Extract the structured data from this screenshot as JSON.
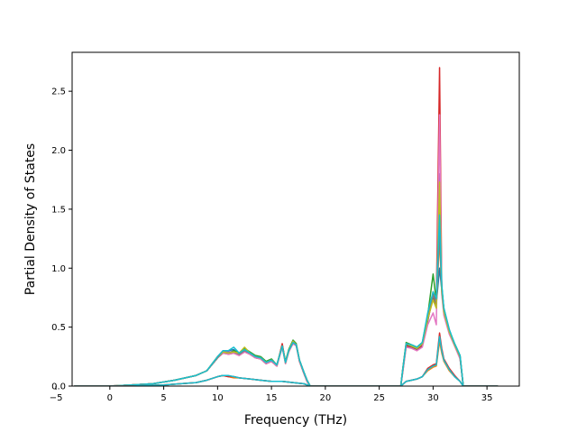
{
  "chart_data": {
    "type": "line",
    "title": "",
    "xlabel": "Frequency (THz)",
    "ylabel": "Partial Density of States",
    "xlim": [
      -3.5,
      38.0
    ],
    "ylim": [
      0.0,
      2.83
    ],
    "xticks": [
      -5,
      0,
      5,
      10,
      15,
      20,
      25,
      30,
      35
    ],
    "xtick_labels": [
      "−5",
      "0",
      "5",
      "10",
      "15",
      "20",
      "25",
      "30",
      "35"
    ],
    "yticks": [
      0.0,
      0.5,
      1.0,
      1.5,
      2.0,
      2.5
    ],
    "ytick_labels": [
      "0.0",
      "0.5",
      "1.0",
      "1.5",
      "2.0",
      "2.5"
    ],
    "grid": false,
    "legend": "none",
    "series": [
      {
        "color": "#1f77b4",
        "x": [
          -3.3,
          0,
          2,
          4,
          6,
          8,
          9,
          10,
          10.5,
          11,
          11.5,
          12,
          12.5,
          13,
          13.5,
          14,
          14.5,
          15,
          15.5,
          16,
          16.3,
          16.6,
          17,
          17.3,
          17.6,
          18,
          18.3,
          18.6,
          27.0,
          27.2,
          27.5,
          28,
          28.5,
          29,
          29.5,
          30,
          30.3,
          30.6,
          30.8,
          31,
          31.5,
          32,
          32.5,
          32.8,
          36
        ],
        "y": [
          0,
          0,
          0.01,
          0.02,
          0.05,
          0.09,
          0.13,
          0.24,
          0.29,
          0.3,
          0.31,
          0.27,
          0.3,
          0.28,
          0.25,
          0.24,
          0.2,
          0.22,
          0.18,
          0.33,
          0.2,
          0.3,
          0.37,
          0.34,
          0.22,
          0.12,
          0.05,
          0,
          0,
          0.15,
          0.36,
          0.33,
          0.32,
          0.36,
          0.55,
          0.78,
          0.7,
          1.0,
          0.82,
          0.66,
          0.48,
          0.35,
          0.25,
          0,
          0
        ]
      },
      {
        "color": "#ff7f0e",
        "x": [
          -3.3,
          0,
          2,
          4,
          6,
          8,
          9,
          10,
          10.5,
          11,
          11.5,
          12,
          12.5,
          13,
          13.5,
          14,
          14.5,
          15,
          15.5,
          16,
          16.3,
          16.6,
          17,
          17.3,
          17.6,
          18,
          18.3,
          18.6,
          27.0,
          27.2,
          27.5,
          28,
          28.5,
          29,
          29.5,
          30,
          30.3,
          30.6,
          30.8,
          31,
          31.5,
          32,
          32.5,
          32.8,
          36
        ],
        "y": [
          0,
          0,
          0.01,
          0.02,
          0.05,
          0.09,
          0.13,
          0.25,
          0.28,
          0.29,
          0.28,
          0.27,
          0.31,
          0.27,
          0.24,
          0.23,
          0.19,
          0.21,
          0.17,
          0.34,
          0.19,
          0.29,
          0.36,
          0.35,
          0.21,
          0.11,
          0.04,
          0,
          0,
          0.14,
          0.35,
          0.34,
          0.3,
          0.35,
          0.57,
          0.74,
          0.68,
          1.25,
          0.8,
          0.62,
          0.45,
          0.34,
          0.24,
          0,
          0
        ]
      },
      {
        "color": "#2ca02c",
        "x": [
          -3.3,
          0,
          2,
          4,
          6,
          8,
          9,
          10,
          10.5,
          11,
          11.5,
          12,
          12.5,
          13,
          13.5,
          14,
          14.5,
          15,
          15.5,
          16,
          16.3,
          16.6,
          17,
          17.3,
          17.6,
          18,
          18.3,
          18.6,
          27.0,
          27.2,
          27.5,
          28,
          28.5,
          29,
          29.5,
          30,
          30.3,
          30.6,
          30.8,
          31,
          31.5,
          32,
          32.5,
          32.8,
          36
        ],
        "y": [
          0,
          0,
          0.01,
          0.02,
          0.05,
          0.09,
          0.13,
          0.24,
          0.29,
          0.28,
          0.3,
          0.28,
          0.32,
          0.29,
          0.26,
          0.25,
          0.21,
          0.23,
          0.18,
          0.35,
          0.21,
          0.31,
          0.39,
          0.36,
          0.22,
          0.12,
          0.05,
          0,
          0,
          0.16,
          0.37,
          0.35,
          0.33,
          0.37,
          0.6,
          0.95,
          0.72,
          1.5,
          0.85,
          0.64,
          0.47,
          0.36,
          0.26,
          0,
          0
        ]
      },
      {
        "color": "#d62728",
        "x": [
          -3.3,
          0,
          2,
          4,
          6,
          8,
          9,
          10,
          10.5,
          11,
          11.5,
          12,
          12.5,
          13,
          13.5,
          14,
          14.5,
          15,
          15.5,
          16,
          16.3,
          16.6,
          17,
          17.3,
          17.6,
          18,
          18.3,
          18.6,
          27.0,
          27.2,
          27.5,
          28,
          28.5,
          29,
          29.5,
          30,
          30.3,
          30.6,
          30.8,
          31,
          31.5,
          32,
          32.5,
          32.8,
          36
        ],
        "y": [
          0,
          0,
          0.01,
          0.02,
          0.05,
          0.09,
          0.13,
          0.24,
          0.28,
          0.27,
          0.28,
          0.26,
          0.29,
          0.27,
          0.25,
          0.23,
          0.19,
          0.21,
          0.17,
          0.36,
          0.2,
          0.29,
          0.38,
          0.35,
          0.21,
          0.11,
          0.04,
          0,
          0,
          0.13,
          0.34,
          0.33,
          0.31,
          0.34,
          0.56,
          0.8,
          0.7,
          2.7,
          0.84,
          0.65,
          0.46,
          0.35,
          0.24,
          0,
          0
        ]
      },
      {
        "color": "#9467bd",
        "x": [
          -3.3,
          0,
          2,
          4,
          6,
          8,
          9,
          10,
          10.5,
          11,
          11.5,
          12,
          12.5,
          13,
          13.5,
          14,
          14.5,
          15,
          15.5,
          16,
          16.3,
          16.6,
          17,
          17.3,
          17.6,
          18,
          18.3,
          18.6,
          27.0,
          27.2,
          27.5,
          28,
          28.5,
          29,
          29.5,
          30,
          30.3,
          30.6,
          30.8,
          31,
          31.5,
          32,
          32.5,
          32.8,
          36
        ],
        "y": [
          0,
          0,
          0.01,
          0.02,
          0.05,
          0.09,
          0.13,
          0.25,
          0.3,
          0.29,
          0.29,
          0.27,
          0.3,
          0.28,
          0.25,
          0.24,
          0.2,
          0.22,
          0.18,
          0.33,
          0.2,
          0.3,
          0.37,
          0.34,
          0.22,
          0.12,
          0.05,
          0,
          0,
          0.15,
          0.36,
          0.34,
          0.32,
          0.36,
          0.58,
          0.76,
          0.69,
          1.8,
          0.83,
          0.63,
          0.46,
          0.35,
          0.25,
          0,
          0
        ]
      },
      {
        "color": "#8c564b",
        "x": [
          -3.3,
          0,
          2,
          4,
          6,
          8,
          9,
          10,
          10.5,
          11,
          11.5,
          12,
          12.5,
          13,
          13.5,
          14,
          14.5,
          15,
          15.5,
          16,
          16.3,
          16.6,
          17,
          17.3,
          17.6,
          18,
          18.3,
          18.6,
          27.0,
          27.2,
          27.5,
          28,
          28.5,
          29,
          29.5,
          30,
          30.3,
          30.6,
          30.8,
          31,
          31.5,
          32,
          32.5,
          32.8,
          36
        ],
        "y": [
          0,
          0,
          0.01,
          0.02,
          0.05,
          0.09,
          0.13,
          0.24,
          0.28,
          0.28,
          0.29,
          0.27,
          0.3,
          0.27,
          0.24,
          0.23,
          0.19,
          0.21,
          0.17,
          0.34,
          0.2,
          0.3,
          0.38,
          0.35,
          0.21,
          0.11,
          0.04,
          0,
          0,
          0.14,
          0.35,
          0.33,
          0.31,
          0.35,
          0.56,
          0.75,
          0.68,
          1.6,
          0.81,
          0.63,
          0.46,
          0.35,
          0.24,
          0,
          0
        ]
      },
      {
        "color": "#e377c2",
        "x": [
          -3.3,
          0,
          2,
          4,
          6,
          8,
          9,
          10,
          10.5,
          11,
          11.5,
          12,
          12.5,
          13,
          13.5,
          14,
          14.5,
          15,
          15.5,
          16,
          16.3,
          16.6,
          17,
          17.3,
          17.6,
          18,
          18.3,
          18.6,
          27.0,
          27.2,
          27.5,
          28,
          28.5,
          29,
          29.5,
          30,
          30.3,
          30.6,
          30.8,
          31,
          31.5,
          32,
          32.5,
          32.8,
          36
        ],
        "y": [
          0,
          0,
          0.01,
          0.02,
          0.05,
          0.09,
          0.13,
          0.24,
          0.28,
          0.27,
          0.28,
          0.26,
          0.29,
          0.27,
          0.24,
          0.23,
          0.19,
          0.21,
          0.17,
          0.33,
          0.19,
          0.29,
          0.36,
          0.34,
          0.21,
          0.11,
          0.04,
          0,
          0,
          0.13,
          0.33,
          0.32,
          0.3,
          0.33,
          0.52,
          0.62,
          0.52,
          2.3,
          0.78,
          0.6,
          0.44,
          0.34,
          0.23,
          0,
          0
        ]
      },
      {
        "color": "#7f7f7f",
        "x": [
          -3.3,
          0,
          2,
          4,
          6,
          8,
          9,
          10,
          10.5,
          11,
          11.5,
          12,
          12.5,
          13,
          13.5,
          14,
          14.5,
          15,
          15.5,
          16,
          16.3,
          16.6,
          17,
          17.3,
          17.6,
          18,
          18.3,
          18.6,
          27.0,
          27.2,
          27.5,
          28,
          28.5,
          29,
          29.5,
          30,
          30.3,
          30.6,
          30.8,
          31,
          31.5,
          32,
          32.5,
          32.8,
          36
        ],
        "y": [
          0,
          0,
          0.01,
          0.02,
          0.05,
          0.09,
          0.13,
          0.24,
          0.29,
          0.28,
          0.29,
          0.27,
          0.3,
          0.28,
          0.25,
          0.24,
          0.2,
          0.22,
          0.18,
          0.34,
          0.2,
          0.3,
          0.37,
          0.35,
          0.22,
          0.12,
          0.05,
          0,
          0,
          0.15,
          0.36,
          0.34,
          0.32,
          0.36,
          0.57,
          0.77,
          0.7,
          1.3,
          0.82,
          0.64,
          0.47,
          0.35,
          0.25,
          0,
          0
        ]
      },
      {
        "color": "#bcbd22",
        "x": [
          -3.3,
          0,
          2,
          4,
          6,
          8,
          9,
          10,
          10.5,
          11,
          11.5,
          12,
          12.5,
          13,
          13.5,
          14,
          14.5,
          15,
          15.5,
          16,
          16.3,
          16.6,
          17,
          17.3,
          17.6,
          18,
          18.3,
          18.6,
          27.0,
          27.2,
          27.5,
          28,
          28.5,
          29,
          29.5,
          30,
          30.3,
          30.6,
          30.8,
          31,
          31.5,
          32,
          32.5,
          32.8,
          36
        ],
        "y": [
          0,
          0,
          0.01,
          0.02,
          0.05,
          0.09,
          0.13,
          0.25,
          0.29,
          0.28,
          0.29,
          0.28,
          0.33,
          0.28,
          0.25,
          0.24,
          0.2,
          0.22,
          0.18,
          0.34,
          0.2,
          0.3,
          0.38,
          0.35,
          0.22,
          0.12,
          0.05,
          0,
          0,
          0.15,
          0.36,
          0.34,
          0.32,
          0.36,
          0.57,
          0.73,
          0.66,
          1.73,
          0.82,
          0.63,
          0.46,
          0.35,
          0.25,
          0,
          0
        ]
      },
      {
        "color": "#17becf",
        "x": [
          -3.3,
          0,
          2,
          4,
          6,
          8,
          9,
          10,
          10.5,
          11,
          11.5,
          12,
          12.5,
          13,
          13.5,
          14,
          14.5,
          15,
          15.5,
          16,
          16.3,
          16.6,
          17,
          17.3,
          17.6,
          18,
          18.3,
          18.6,
          27.0,
          27.2,
          27.5,
          28,
          28.5,
          29,
          29.5,
          30,
          30.3,
          30.6,
          30.8,
          31,
          31.5,
          32,
          32.5,
          32.8,
          36
        ],
        "y": [
          0,
          0,
          0.01,
          0.02,
          0.05,
          0.09,
          0.13,
          0.25,
          0.3,
          0.3,
          0.33,
          0.28,
          0.31,
          0.28,
          0.25,
          0.24,
          0.2,
          0.22,
          0.18,
          0.34,
          0.2,
          0.3,
          0.37,
          0.35,
          0.22,
          0.12,
          0.05,
          0,
          0,
          0.15,
          0.36,
          0.35,
          0.33,
          0.37,
          0.62,
          0.8,
          0.74,
          1.45,
          0.86,
          0.66,
          0.48,
          0.36,
          0.26,
          0,
          0
        ]
      },
      {
        "color": "#1f77b4",
        "x": [
          -3.3,
          2,
          5,
          8,
          9,
          10,
          10.5,
          11,
          11.5,
          12,
          13,
          14,
          15,
          16,
          17,
          18,
          18.6,
          27.0,
          27.5,
          28,
          28.5,
          29,
          29.5,
          30,
          30.3,
          30.6,
          30.8,
          31,
          31.5,
          32,
          32.5,
          32.8,
          36
        ],
        "y": [
          0,
          0,
          0.01,
          0.03,
          0.05,
          0.08,
          0.09,
          0.08,
          0.08,
          0.07,
          0.06,
          0.05,
          0.04,
          0.04,
          0.03,
          0.02,
          0,
          0,
          0.04,
          0.05,
          0.06,
          0.08,
          0.14,
          0.17,
          0.18,
          0.4,
          0.3,
          0.22,
          0.14,
          0.08,
          0.04,
          0,
          0
        ]
      },
      {
        "color": "#ff7f0e",
        "x": [
          -3.3,
          2,
          5,
          8,
          9,
          10,
          10.5,
          11,
          11.5,
          12,
          13,
          14,
          15,
          16,
          17,
          18,
          18.6,
          27.0,
          27.5,
          28,
          28.5,
          29,
          29.5,
          30,
          30.3,
          30.6,
          30.8,
          31,
          31.5,
          32,
          32.5,
          32.8,
          36
        ],
        "y": [
          0,
          0,
          0.01,
          0.03,
          0.05,
          0.08,
          0.09,
          0.08,
          0.07,
          0.07,
          0.06,
          0.05,
          0.04,
          0.04,
          0.03,
          0.02,
          0,
          0,
          0.04,
          0.05,
          0.06,
          0.08,
          0.13,
          0.16,
          0.17,
          0.38,
          0.28,
          0.21,
          0.13,
          0.08,
          0.04,
          0,
          0
        ]
      },
      {
        "color": "#d62728",
        "x": [
          -3.3,
          2,
          5,
          8,
          9,
          10,
          10.5,
          11,
          11.5,
          12,
          13,
          14,
          15,
          16,
          17,
          18,
          18.6,
          27.0,
          27.5,
          28,
          28.5,
          29,
          29.5,
          30,
          30.3,
          30.6,
          30.8,
          31,
          31.5,
          32,
          32.5,
          32.8,
          36
        ],
        "y": [
          0,
          0,
          0.01,
          0.03,
          0.05,
          0.08,
          0.09,
          0.08,
          0.08,
          0.07,
          0.06,
          0.05,
          0.04,
          0.04,
          0.03,
          0.02,
          0,
          0,
          0.04,
          0.05,
          0.06,
          0.08,
          0.15,
          0.18,
          0.19,
          0.45,
          0.32,
          0.23,
          0.15,
          0.09,
          0.04,
          0,
          0
        ]
      },
      {
        "color": "#17becf",
        "x": [
          -3.3,
          2,
          5,
          8,
          9,
          10,
          10.5,
          11,
          11.5,
          12,
          13,
          14,
          15,
          16,
          17,
          18,
          18.6,
          27.0,
          27.5,
          28,
          28.5,
          29,
          29.5,
          30,
          30.3,
          30.6,
          30.8,
          31,
          31.5,
          32,
          32.5,
          32.8,
          36
        ],
        "y": [
          0,
          0,
          0.01,
          0.03,
          0.05,
          0.08,
          0.09,
          0.09,
          0.08,
          0.07,
          0.06,
          0.05,
          0.04,
          0.04,
          0.03,
          0.02,
          0,
          0,
          0.04,
          0.05,
          0.06,
          0.08,
          0.14,
          0.17,
          0.18,
          0.42,
          0.3,
          0.22,
          0.14,
          0.08,
          0.04,
          0,
          0
        ]
      }
    ]
  }
}
